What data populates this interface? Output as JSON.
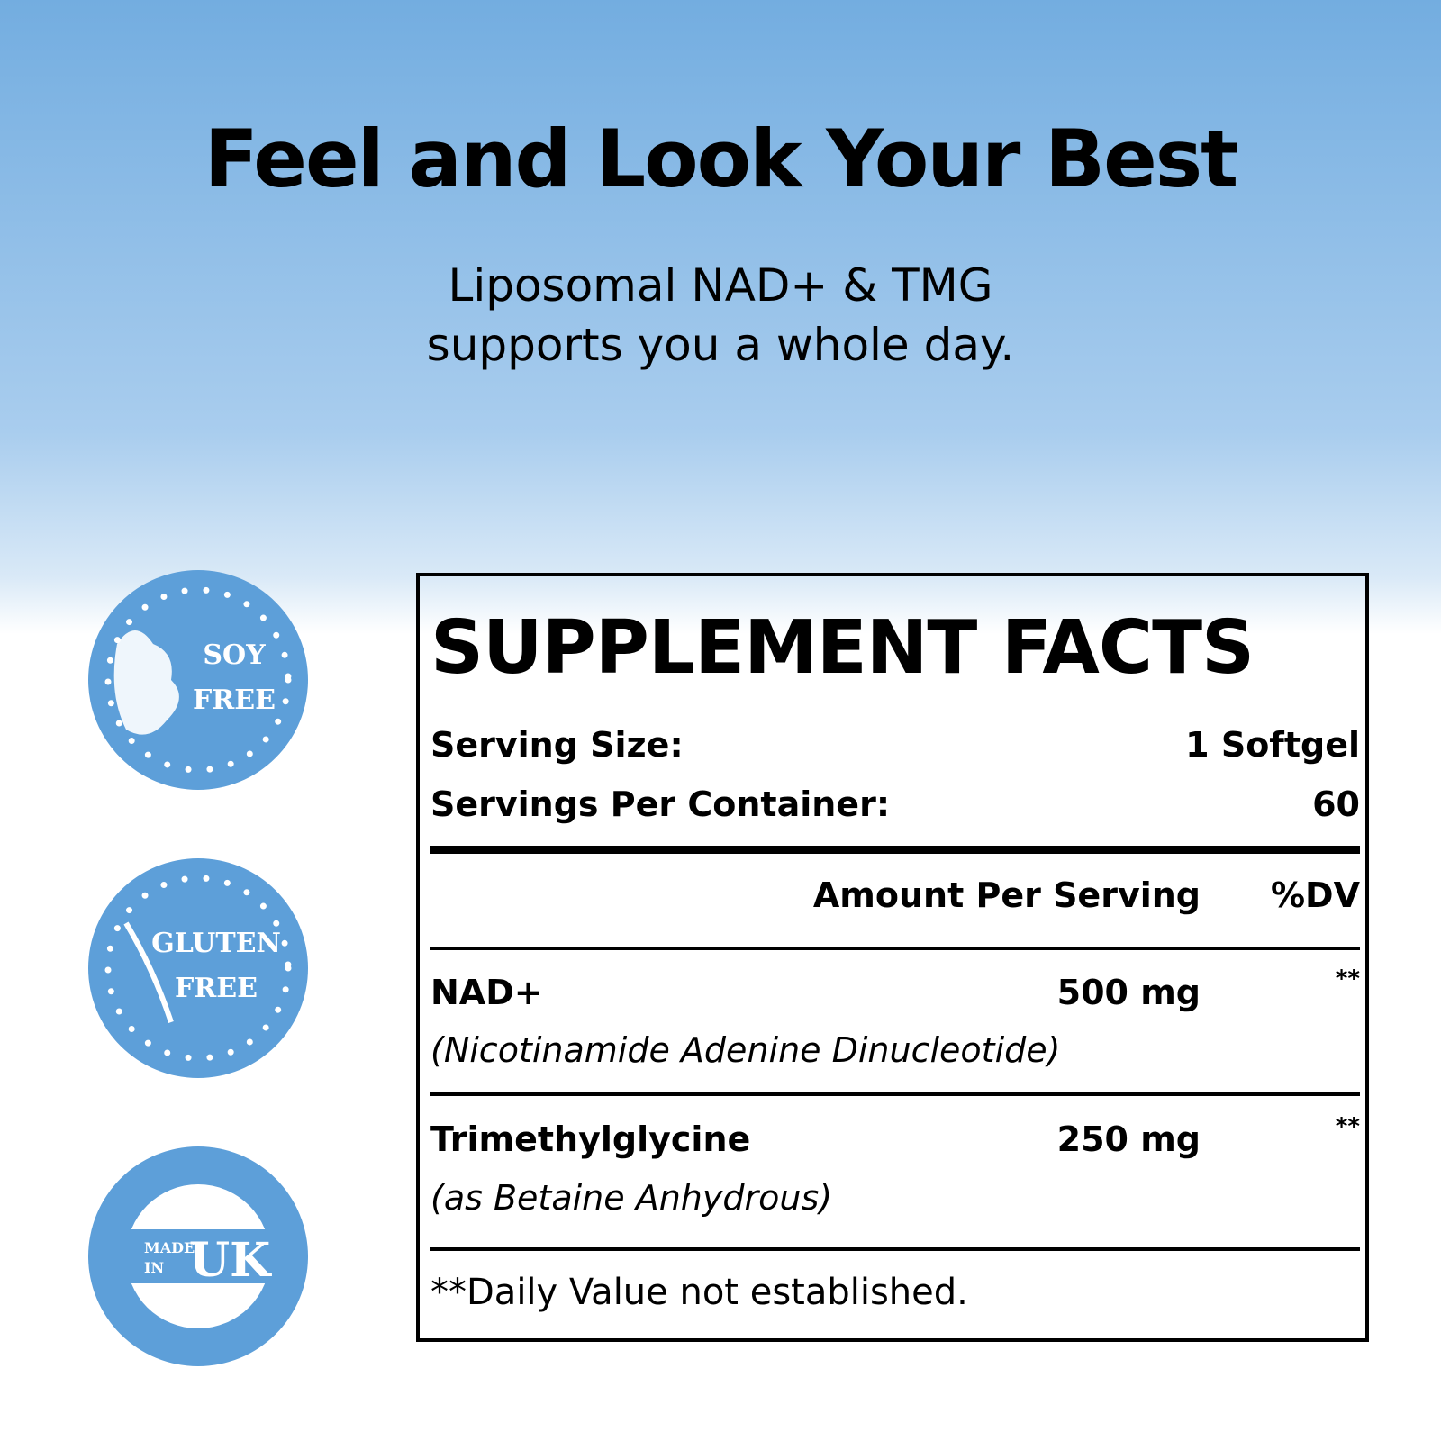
{
  "header": {
    "title": "Feel and Look Your Best",
    "subtitle": [
      "Liposomal NAD+ & TMG",
      "supports you a whole day."
    ]
  },
  "badges": [
    {
      "lines": [
        "SOY",
        "FREE"
      ]
    },
    {
      "lines": [
        "GLUTEN",
        "FREE"
      ]
    },
    {
      "small": [
        "MADE",
        "IN"
      ],
      "big": "UK"
    }
  ],
  "facts": {
    "title": "SUPPLEMENT FACTS",
    "serving_size": {
      "label": "Serving Size:",
      "value": "1 Softgel"
    },
    "servings_per_container": {
      "label": "Servings Per Container:",
      "value": "60"
    },
    "columns": [
      "Amount Per Serving",
      "%DV"
    ],
    "rows": [
      {
        "name": "NAD+",
        "detail": "(Nicotinamide Adenine Dinucleotide)",
        "amount": "500 mg",
        "dv": "**"
      },
      {
        "name": "Trimethylglycine",
        "detail": "(as Betaine Anhydrous)",
        "amount": "250 mg",
        "dv": "**"
      }
    ],
    "footnote": "**Daily Value not established."
  }
}
